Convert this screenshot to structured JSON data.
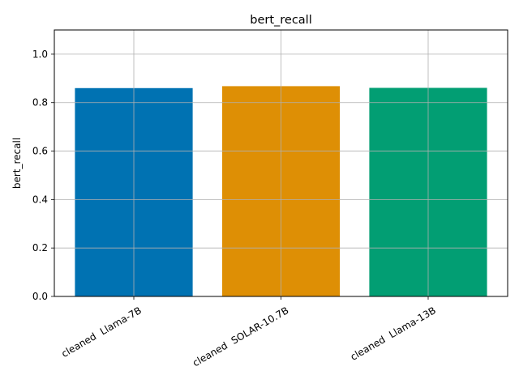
{
  "chart_data": {
    "type": "bar",
    "title": "bert_recall",
    "xlabel": "",
    "ylabel": "bert_recall",
    "categories": [
      "cleaned  Llama-7B",
      "cleaned  SOLAR-10.7B",
      "cleaned  Llama-13B"
    ],
    "values": [
      0.86,
      0.868,
      0.861
    ],
    "colors": [
      "#0072b2",
      "#de8f05",
      "#029e73"
    ],
    "ylim": [
      0,
      1.1
    ],
    "yticks": [
      0.0,
      0.2,
      0.4,
      0.6,
      0.8,
      1.0
    ],
    "ytick_labels": [
      "0.0",
      "0.2",
      "0.4",
      "0.6",
      "0.8",
      "1.0"
    ],
    "grid": true,
    "xtick_rotation_deg": 30
  }
}
